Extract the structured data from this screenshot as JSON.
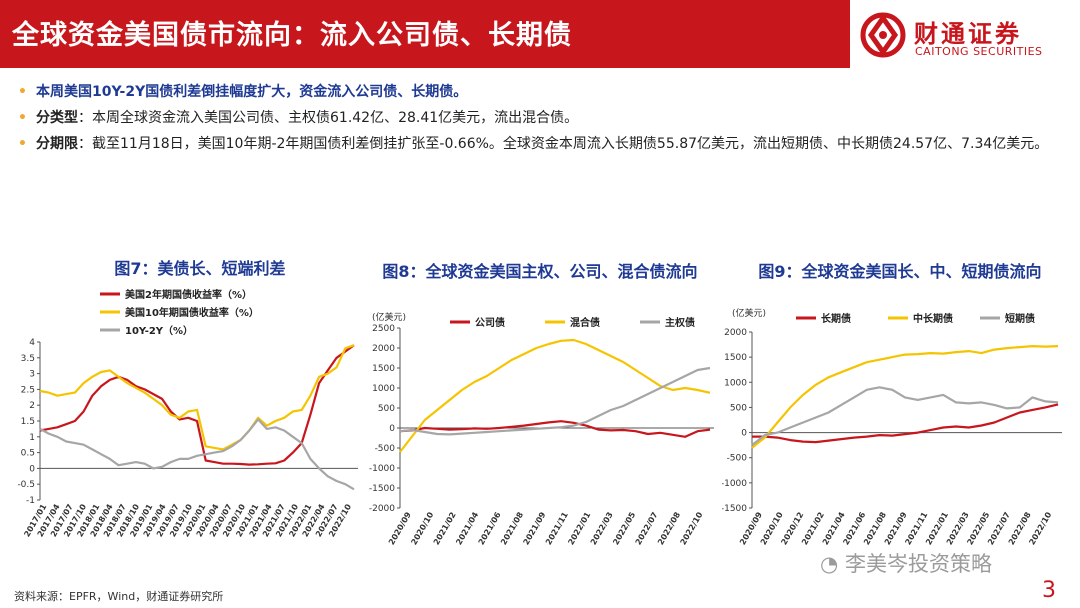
{
  "title": "全球资金美国债市流向：流入公司债、长期债",
  "logo": {
    "cn": "财通证券",
    "en": "CAITONG SECURITIES"
  },
  "bullets": {
    "b1": "本周美国10Y-2Y国债利差倒挂幅度扩大，资金流入公司债、长期债。",
    "b2_label": "分类型",
    "b2_text": "：本周全球资金流入美国公司债、主权债61.42亿、28.41亿美元，流出混合债。",
    "b3_label": "分期限",
    "b3_text": "：截至11月18日，美国10年期-2年期国债利差倒挂扩张至-0.66%。全球资金本周流入长期债55.87亿美元，流出短期债、中长期债24.57亿、7.34亿美元。"
  },
  "source": "资料来源：EPFR，Wind，财通证券研究所",
  "page_number": "3",
  "watermark": "李美岑投资策略",
  "colors": {
    "red": "#c8161d",
    "yellow": "#f5c400",
    "gray": "#a6a6a6",
    "navy": "#1f3a93"
  },
  "chart_data": [
    {
      "type": "line",
      "title": "图7：美债长、短端利差",
      "ylim": [
        -1,
        4
      ],
      "yticks": [
        "4",
        "3.5",
        "3",
        "2.5",
        "2",
        "1.5",
        "1",
        "0.5",
        "0",
        "-0.5",
        "-1"
      ],
      "xticks": [
        "2017/01",
        "2017/04",
        "2017/07",
        "2017/10",
        "2018/01",
        "2018/04",
        "2018/07",
        "2018/10",
        "2019/01",
        "2019/04",
        "2019/07",
        "2019/10",
        "2020/01",
        "2020/04",
        "2020/07",
        "2020/10",
        "2021/01",
        "2021/04",
        "2021/07",
        "2021/10",
        "2022/01",
        "2022/04",
        "2022/07",
        "2022/10"
      ],
      "series": [
        {
          "name": "美国2年期国债收益率（%）",
          "color": "red",
          "values": [
            1.2,
            1.25,
            1.3,
            1.4,
            1.5,
            1.8,
            2.3,
            2.6,
            2.8,
            2.9,
            2.8,
            2.6,
            2.5,
            2.35,
            2.2,
            1.8,
            1.55,
            1.6,
            1.5,
            0.25,
            0.2,
            0.15,
            0.15,
            0.14,
            0.12,
            0.13,
            0.15,
            0.16,
            0.25,
            0.5,
            0.8,
            1.7,
            2.7,
            3.1,
            3.5,
            3.7,
            3.9
          ]
        },
        {
          "name": "美国10年期国债收益率（%）",
          "color": "yellow",
          "values": [
            2.45,
            2.4,
            2.3,
            2.35,
            2.4,
            2.7,
            2.9,
            3.05,
            3.1,
            2.9,
            2.7,
            2.55,
            2.4,
            2.2,
            2.0,
            1.7,
            1.6,
            1.8,
            1.85,
            0.7,
            0.65,
            0.6,
            0.75,
            0.9,
            1.2,
            1.6,
            1.35,
            1.5,
            1.6,
            1.8,
            1.85,
            2.3,
            2.9,
            3.0,
            3.2,
            3.8,
            3.9
          ]
        },
        {
          "name": "10Y-2Y（%）",
          "color": "gray",
          "values": [
            1.25,
            1.1,
            1.0,
            0.85,
            0.8,
            0.75,
            0.6,
            0.45,
            0.3,
            0.1,
            0.15,
            0.2,
            0.15,
            0.0,
            0.05,
            0.2,
            0.3,
            0.3,
            0.4,
            0.45,
            0.5,
            0.55,
            0.7,
            0.9,
            1.2,
            1.55,
            1.25,
            1.3,
            1.2,
            1.0,
            0.8,
            0.3,
            0.0,
            -0.25,
            -0.4,
            -0.5,
            -0.66
          ]
        }
      ]
    },
    {
      "type": "line",
      "title": "图8：全球资金美国主权、公司、混合债流向",
      "unit": "(亿美元)",
      "ylim": [
        -2000,
        2500
      ],
      "yticks": [
        "2500",
        "2000",
        "1500",
        "1000",
        "500",
        "0",
        "-500",
        "-1000",
        "-1500",
        "-2000"
      ],
      "xticks": [
        "2020/09",
        "2020/10",
        "2021/02",
        "2021/04",
        "2021/06",
        "2021/08",
        "2021/09",
        "2021/11",
        "2022/01",
        "2022/03",
        "2022/05",
        "2022/07",
        "2022/08",
        "2022/10"
      ],
      "series": [
        {
          "name": "公司债",
          "color": "red",
          "values": [
            -80,
            -60,
            0,
            -20,
            -40,
            -30,
            -10,
            -20,
            0,
            30,
            60,
            100,
            140,
            170,
            130,
            60,
            -40,
            -60,
            -50,
            -80,
            -150,
            -120,
            -170,
            -220,
            -80,
            -40
          ]
        },
        {
          "name": "混合债",
          "color": "yellow",
          "values": [
            -600,
            -200,
            200,
            450,
            700,
            950,
            1150,
            1300,
            1500,
            1700,
            1850,
            2000,
            2100,
            2180,
            2200,
            2100,
            1950,
            1800,
            1650,
            1450,
            1250,
            1050,
            950,
            1000,
            950,
            880
          ]
        },
        {
          "name": "主权债",
          "color": "gray",
          "values": [
            -80,
            -50,
            -100,
            -150,
            -160,
            -140,
            -120,
            -100,
            -80,
            -60,
            -40,
            -20,
            0,
            20,
            60,
            150,
            300,
            450,
            550,
            700,
            850,
            1000,
            1150,
            1300,
            1450,
            1500
          ]
        }
      ]
    },
    {
      "type": "line",
      "title": "图9：全球资金美国长、中、短期债流向",
      "unit": "(亿美元)",
      "ylim": [
        -1500,
        2000
      ],
      "yticks": [
        "2000",
        "1500",
        "1000",
        "500",
        "0",
        "-500",
        "-1000",
        "-1500"
      ],
      "xticks": [
        "2020/09",
        "2020/10",
        "2020/12",
        "2021/02",
        "2021/04",
        "2021/06",
        "2021/08",
        "2021/09",
        "2021/11",
        "2022/01",
        "2022/03",
        "2022/05",
        "2022/07",
        "2022/08",
        "2022/10"
      ],
      "series": [
        {
          "name": "长期债",
          "color": "red",
          "values": [
            -80,
            -80,
            -100,
            -150,
            -180,
            -190,
            -160,
            -130,
            -100,
            -80,
            -50,
            -60,
            -30,
            0,
            50,
            100,
            120,
            100,
            140,
            200,
            300,
            400,
            450,
            500,
            560
          ]
        },
        {
          "name": "中长期债",
          "color": "yellow",
          "values": [
            -300,
            -100,
            200,
            500,
            750,
            950,
            1100,
            1200,
            1300,
            1400,
            1450,
            1500,
            1550,
            1560,
            1580,
            1570,
            1600,
            1620,
            1580,
            1650,
            1680,
            1700,
            1720,
            1710,
            1720
          ]
        },
        {
          "name": "短期债",
          "color": "gray",
          "values": [
            -250,
            -50,
            0,
            100,
            200,
            300,
            400,
            550,
            700,
            850,
            900,
            850,
            700,
            650,
            700,
            750,
            600,
            580,
            600,
            550,
            480,
            500,
            700,
            620,
            600
          ]
        }
      ]
    }
  ]
}
